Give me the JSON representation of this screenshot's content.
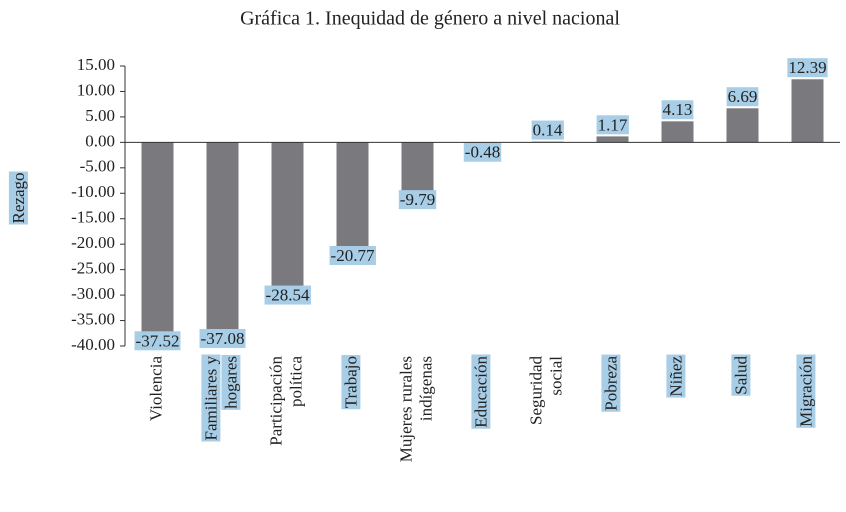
{
  "chart_data": {
    "type": "bar",
    "title": "Gráfica 1. Inequidad de género a nivel nacional",
    "y_label": "Rezago",
    "categories": [
      [
        "Violencia"
      ],
      [
        "Familiares y",
        "hogares"
      ],
      [
        "Participación",
        "política"
      ],
      [
        "Trabajo"
      ],
      [
        "Mujeres rurales",
        "indígenas"
      ],
      [
        "Educación"
      ],
      [
        "Seguridad",
        "social"
      ],
      [
        "Pobreza"
      ],
      [
        "Niñez"
      ],
      [
        "Salud"
      ],
      [
        "Migración"
      ]
    ],
    "values": [
      -37.52,
      -37.08,
      -28.54,
      -20.77,
      -9.79,
      -0.48,
      0.14,
      1.17,
      4.13,
      6.69,
      12.39
    ],
    "color": "#7a7a7e",
    "ylim": [
      -40,
      15
    ],
    "yticks": [
      {
        "value": 15,
        "label": "15.00"
      },
      {
        "value": 10,
        "label": "10.00"
      },
      {
        "value": 5,
        "label": "5.00"
      },
      {
        "value": 0,
        "label": "0.00"
      },
      {
        "value": -5,
        "label": "-5.00"
      },
      {
        "value": -10,
        "label": "-10.00"
      },
      {
        "value": -15,
        "label": "-15.00"
      },
      {
        "value": -20,
        "label": "-20.00"
      },
      {
        "value": -25,
        "label": "-25.00"
      },
      {
        "value": -30,
        "label": "-30.00"
      },
      {
        "value": -35,
        "label": "-35.00"
      },
      {
        "value": -40,
        "label": "-40.00"
      }
    ]
  }
}
